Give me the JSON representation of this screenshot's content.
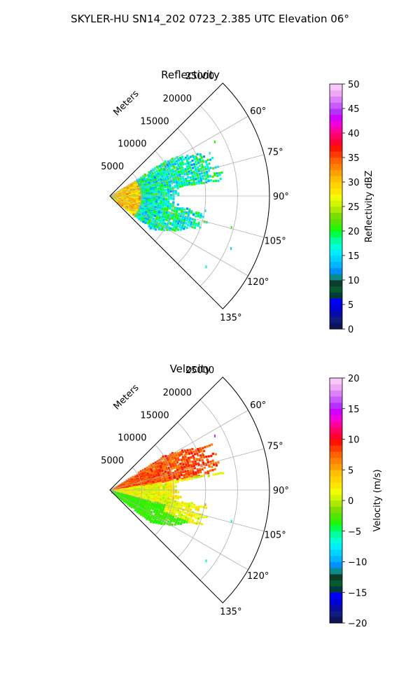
{
  "figure": {
    "suptitle": "SKYLER-HU  SN14_202  0723_2.385 UTC Elevation 06°"
  },
  "chart_data": [
    {
      "type": "heatmap",
      "projection": "polar-sector",
      "title": "Reflectivity",
      "radial_label": "Meters",
      "radial_ticks": [
        5000,
        10000,
        15000,
        20000,
        25000
      ],
      "radial_tick_labels": [
        "5000",
        "10000",
        "15000",
        "20000",
        "25000"
      ],
      "rlim": [
        0,
        25000
      ],
      "theta_range_deg": [
        45,
        135
      ],
      "theta_ticks_deg": [
        60,
        75,
        90,
        105,
        120,
        135
      ],
      "theta_tick_labels": [
        "60°",
        "75°",
        "90°",
        "105°",
        "120°",
        "135°"
      ],
      "grid": true,
      "colorbar": {
        "label": "Reflectivity dBZ",
        "range": [
          0,
          50
        ],
        "ticks": [
          0,
          5,
          10,
          15,
          20,
          25,
          30,
          35,
          40,
          45,
          50
        ],
        "tick_labels": [
          "0",
          "5",
          "10",
          "15",
          "20",
          "25",
          "30",
          "35",
          "40",
          "45",
          "50"
        ],
        "colors": [
          "#0d1458",
          "#101b7e",
          "#0a0aa8",
          "#0000d8",
          "#0000f8",
          "#003a3a",
          "#075a2e",
          "#0a3e28",
          "#0a8a8a",
          "#0090ff",
          "#00b4ff",
          "#00d2ff",
          "#00ecff",
          "#00ffd2",
          "#00ff9e",
          "#00ff4a",
          "#26f500",
          "#55e400",
          "#7ddc00",
          "#a8eb00",
          "#d2f500",
          "#f0ff00",
          "#ffe600",
          "#ffd200",
          "#ffbe00",
          "#ffa000",
          "#ff8200",
          "#ff6400",
          "#ff3c00",
          "#ff1400",
          "#ff0032",
          "#ff0064",
          "#ff00a0",
          "#f000dc",
          "#d200ff",
          "#b432ff",
          "#c85aff",
          "#dc82ff",
          "#f0aaf5",
          "#f8c8fa"
        ]
      },
      "echo_summary": {
        "max_range_m": 19000,
        "dominant_values": [
          12,
          22
        ],
        "near_core_values": [
          25,
          32
        ],
        "isolated_gates": [
          {
            "theta_deg": 62,
            "r_m": 18500,
            "value": 20
          },
          {
            "theta_deg": 66,
            "r_m": 17000,
            "value": 18
          },
          {
            "theta_deg": 98,
            "r_m": 15000,
            "value": 16
          },
          {
            "theta_deg": 104,
            "r_m": 19500,
            "value": 20
          },
          {
            "theta_deg": 113,
            "r_m": 20500,
            "value": 14
          },
          {
            "theta_deg": 126,
            "r_m": 18500,
            "value": 18
          }
        ]
      }
    },
    {
      "type": "heatmap",
      "projection": "polar-sector",
      "title": "Velocity",
      "radial_label": "Meters",
      "radial_ticks": [
        5000,
        10000,
        15000,
        20000,
        25000
      ],
      "radial_tick_labels": [
        "5000",
        "10000",
        "15000",
        "20000",
        "25000"
      ],
      "rlim": [
        0,
        25000
      ],
      "theta_range_deg": [
        45,
        135
      ],
      "theta_ticks_deg": [
        60,
        75,
        90,
        105,
        120,
        135
      ],
      "theta_tick_labels": [
        "60°",
        "75°",
        "90°",
        "105°",
        "120°",
        "135°"
      ],
      "grid": true,
      "colorbar": {
        "label": "Velocity (m/s)",
        "range": [
          -20,
          20
        ],
        "ticks": [
          -20,
          -15,
          -10,
          -5,
          0,
          5,
          10,
          15,
          20
        ],
        "tick_labels": [
          "−20",
          "−15",
          "−10",
          "−5",
          "0",
          "5",
          "10",
          "15",
          "20"
        ],
        "colors": [
          "#0d1458",
          "#101b7e",
          "#0a0aa8",
          "#0000d8",
          "#0000f8",
          "#003a3a",
          "#075a2e",
          "#0a3e28",
          "#0a8a8a",
          "#0090ff",
          "#00b4ff",
          "#00d2ff",
          "#00ecff",
          "#00ffd2",
          "#00ff9e",
          "#00ff4a",
          "#26f500",
          "#55e400",
          "#7ddc00",
          "#a8eb00",
          "#d2f500",
          "#f0ff00",
          "#ffe600",
          "#ffd200",
          "#ffbe00",
          "#ffa000",
          "#ff8200",
          "#ff6400",
          "#ff3c00",
          "#ff1400",
          "#ff0032",
          "#ff0064",
          "#ff00a0",
          "#f000dc",
          "#d200ff",
          "#b432ff",
          "#c85aff",
          "#dc82ff",
          "#f0aaf5",
          "#f8c8fa"
        ]
      },
      "echo_summary": {
        "max_range_m": 19000,
        "upper_sector_values": [
          7,
          10
        ],
        "center_values": [
          0,
          3
        ],
        "lower_sector_values": [
          -4,
          -3
        ],
        "isolated_gates": [
          {
            "theta_deg": 62,
            "r_m": 18500,
            "value": 15
          },
          {
            "theta_deg": 98,
            "r_m": 15000,
            "value": 5
          },
          {
            "theta_deg": 104,
            "r_m": 19500,
            "value": -6
          },
          {
            "theta_deg": 126,
            "r_m": 18500,
            "value": -6
          }
        ]
      }
    }
  ]
}
